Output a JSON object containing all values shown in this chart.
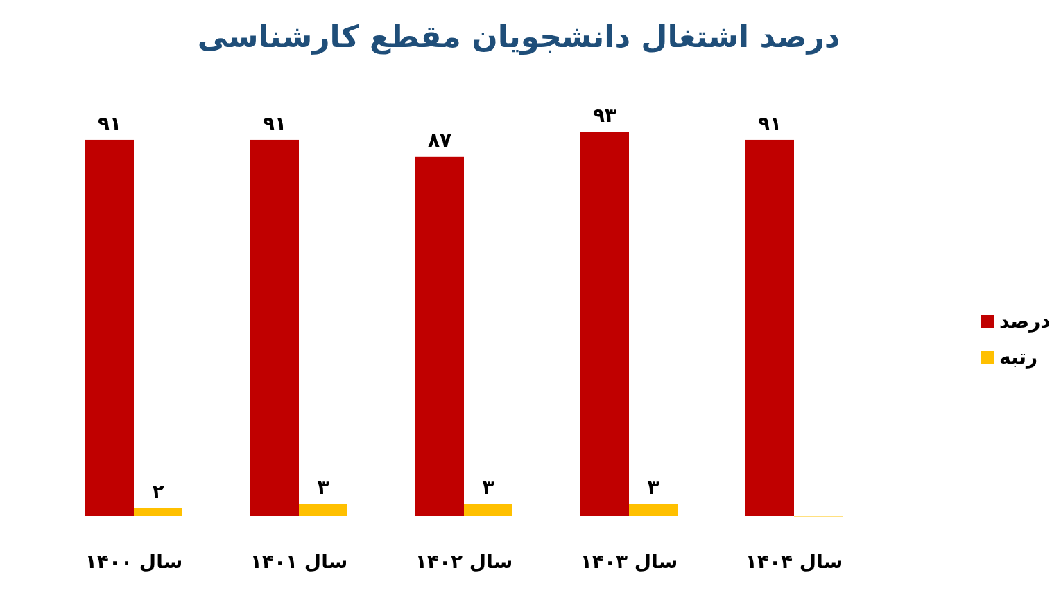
{
  "chart_data": {
    "type": "bar",
    "title": "درصد اشتغال دانشجویان مقطع کارشناسی",
    "categories": [
      "سال ۱۴۰۰",
      "سال ۱۴۰۱",
      "سال ۱۴۰۲",
      "سال ۱۴۰۳",
      "سال ۱۴۰۴"
    ],
    "series": [
      {
        "name": "درصد",
        "color": "#c00000",
        "values": [
          91,
          91,
          87,
          93,
          91
        ],
        "value_labels": [
          "۹۱",
          "۹۱",
          "۸۷",
          "۹۳",
          "۹۱"
        ]
      },
      {
        "name": "رتبه",
        "color": "#ffc000",
        "values": [
          2,
          3,
          3,
          3,
          0
        ],
        "value_labels": [
          "۲",
          "۳",
          "۳",
          "۳",
          null
        ]
      }
    ],
    "legend": "right",
    "grid": false
  }
}
